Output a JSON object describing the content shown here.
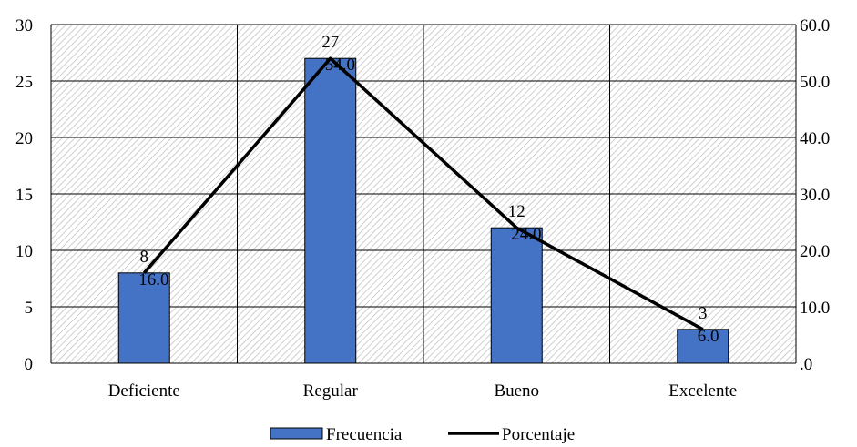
{
  "chart_data": {
    "type": "bar",
    "categories": [
      "Deficiente",
      "Regular",
      "Bueno",
      "Excelente"
    ],
    "series": [
      {
        "name": "Frecuencia",
        "type": "bar",
        "axis": "left",
        "values": [
          8,
          27,
          12,
          3
        ],
        "data_labels": [
          "8",
          "27",
          "12",
          "3"
        ],
        "color": "#4472C4"
      },
      {
        "name": "Porcentaje",
        "type": "line",
        "axis": "right",
        "values": [
          16.0,
          54.0,
          24.0,
          6.0
        ],
        "data_labels": [
          "16.0",
          "54.0",
          "24.0",
          "6.0"
        ],
        "color": "#000000"
      }
    ],
    "ylim_left": [
      0,
      30
    ],
    "yticks_left": [
      "0",
      "5",
      "10",
      "15",
      "20",
      "25",
      "30"
    ],
    "ylim_right": [
      0,
      60
    ],
    "yticks_right": [
      ".0",
      "10.0",
      "20.0",
      "30.0",
      "40.0",
      "50.0",
      "60.0"
    ],
    "grid": true,
    "plot_background": "hatched-gray",
    "legend_position": "bottom-center"
  }
}
